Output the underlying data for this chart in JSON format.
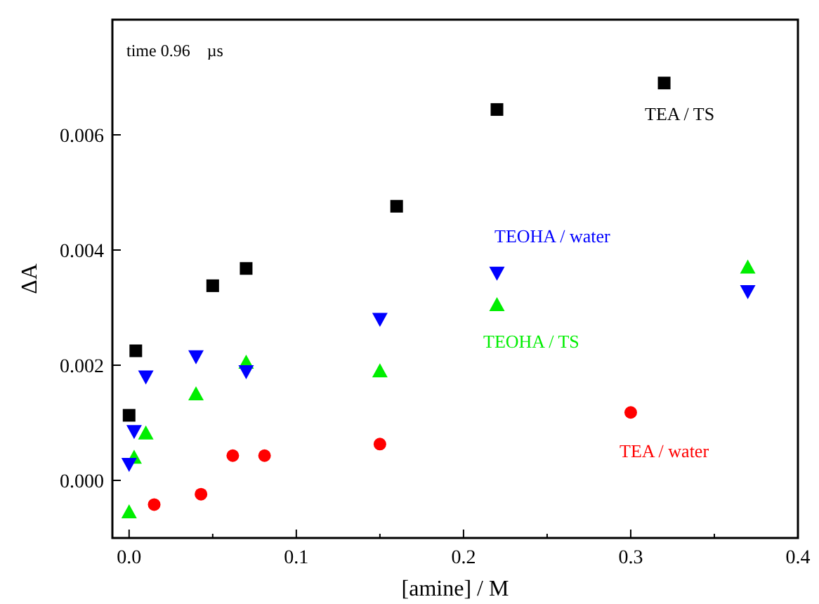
{
  "chart_data": {
    "type": "scatter",
    "xlabel": "[amine] /  M",
    "ylabel": "ΔA",
    "annotations": [
      "time 0.96    µs"
    ],
    "xlim": [
      -0.01,
      0.4
    ],
    "ylim": [
      -0.001,
      0.008
    ],
    "xticks": [
      {
        "value": 0,
        "label": "0.0"
      },
      {
        "value": 0.05,
        "label": null
      },
      {
        "value": 0.1,
        "label": "0.1"
      },
      {
        "value": 0.15,
        "label": null
      },
      {
        "value": 0.2,
        "label": "0.2"
      },
      {
        "value": 0.25,
        "label": null
      },
      {
        "value": 0.3,
        "label": "0.3"
      },
      {
        "value": 0.35,
        "label": null
      },
      {
        "value": 0.4,
        "label": "0.4"
      }
    ],
    "yticks": [
      {
        "value": 0,
        "label": "0.000"
      },
      {
        "value": 0.002,
        "label": "0.002"
      },
      {
        "value": 0.004,
        "label": "0.004"
      },
      {
        "value": 0.006,
        "label": "0.006"
      }
    ],
    "grid": false,
    "legend": false,
    "series": [
      {
        "name": "TEA / TS",
        "color": "#000000",
        "marker": "square",
        "x": [
          0,
          0.004,
          0.05,
          0.07,
          0.16,
          0.22,
          0.32
        ],
        "values": [
          0.00113,
          0.00225,
          0.00338,
          0.00368,
          0.00476,
          0.00644,
          0.0069
        ]
      },
      {
        "name": "TEOHA / water",
        "color": "#0000ff",
        "marker": "triangle_down",
        "x": [
          0,
          0.003,
          0.01,
          0.04,
          0.07,
          0.15,
          0.22,
          0.37
        ],
        "values": [
          0.00028,
          0.00085,
          0.0018,
          0.00215,
          0.00189,
          0.0028,
          0.0036,
          0.00328
        ]
      },
      {
        "name": "TEOHA / TS",
        "color": "#00ee00",
        "marker": "triangle",
        "x": [
          0,
          0.003,
          0.01,
          0.04,
          0.07,
          0.15,
          0.22,
          0.37
        ],
        "values": [
          -0.00055,
          0.0004,
          0.00082,
          0.0015,
          0.00205,
          0.0019,
          0.00305,
          0.0037
        ]
      },
      {
        "name": "TEA / water",
        "color": "#ff0000",
        "marker": "circle",
        "x": [
          0.015,
          0.043,
          0.062,
          0.081,
          0.15,
          0.3
        ],
        "values": [
          -0.00042,
          -0.00024,
          0.00043,
          0.00043,
          0.00063,
          0.00118
        ]
      }
    ]
  }
}
